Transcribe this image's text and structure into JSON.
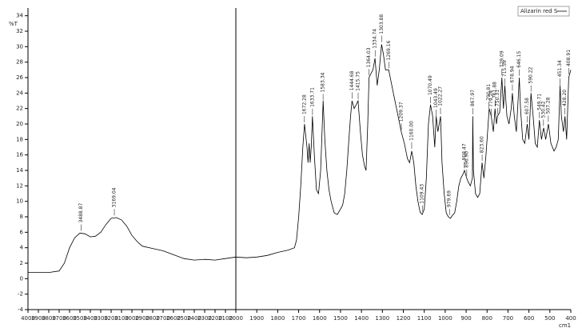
{
  "chart_data": {
    "type": "line",
    "y_label": "%T",
    "x_label": "cm1",
    "x": [
      4000,
      3800,
      3700,
      3650,
      3600,
      3550,
      3500,
      3450,
      3400,
      3350,
      3300,
      3250,
      3200,
      3150,
      3100,
      3050,
      3000,
      2950,
      2900,
      2800,
      2700,
      2600,
      2500,
      2400,
      2300,
      2200,
      2100,
      2000,
      1950,
      1900,
      1850,
      1800,
      1750,
      1720,
      1710,
      1700,
      1690,
      1680,
      1672,
      1660,
      1655,
      1650,
      1645,
      1640,
      1634,
      1625,
      1615,
      1605,
      1595,
      1583,
      1575,
      1565,
      1555,
      1545,
      1530,
      1515,
      1500,
      1490,
      1480,
      1470,
      1460,
      1452,
      1445,
      1435,
      1425,
      1416,
      1405,
      1395,
      1385,
      1378,
      1370,
      1364,
      1355,
      1345,
      1335,
      1325,
      1315,
      1304,
      1295,
      1285,
      1270,
      1255,
      1240,
      1225,
      1210,
      1195,
      1180,
      1170,
      1160,
      1150,
      1140,
      1130,
      1120,
      1110,
      1100,
      1090,
      1080,
      1070,
      1060,
      1050,
      1043,
      1035,
      1022,
      1015,
      1005,
      995,
      985,
      975,
      965,
      955,
      945,
      935,
      925,
      915,
      908,
      897,
      890,
      880,
      870,
      868,
      865,
      855,
      845,
      835,
      824,
      815,
      805,
      795,
      790,
      780,
      770,
      762,
      755,
      750,
      740,
      729,
      722,
      715,
      705,
      695,
      685,
      679,
      670,
      660,
      646,
      640,
      630,
      620,
      608,
      600,
      590,
      580,
      570,
      560,
      550,
      540,
      530,
      520,
      507,
      495,
      480,
      470,
      460,
      451,
      445,
      435,
      428,
      420,
      410,
      400
    ],
    "series": [
      {
        "name": "Alizarin red S",
        "color": "#000000",
        "values": [
          0.8,
          0.8,
          1.0,
          2,
          4,
          5.3,
          5.9,
          5.8,
          5.4,
          5.5,
          6.0,
          7.0,
          7.8,
          7.9,
          7.6,
          6.8,
          5.6,
          4.8,
          4.2,
          3.9,
          3.6,
          3.1,
          2.6,
          2.4,
          2.5,
          2.4,
          2.6,
          2.8,
          2.7,
          2.8,
          3.0,
          3.4,
          3.7,
          4.0,
          5,
          8,
          12,
          17,
          20,
          17,
          15,
          17.5,
          15,
          17,
          21,
          16,
          11.5,
          11,
          14,
          23,
          18,
          14,
          11.5,
          10,
          8.5,
          8.3,
          9,
          9.5,
          11,
          14,
          18,
          21,
          23,
          22,
          22.5,
          23,
          19,
          16,
          14.5,
          14,
          20,
          26,
          26.5,
          27,
          28.5,
          25,
          27,
          30.3,
          29,
          27,
          27,
          25,
          23,
          21,
          19,
          17.5,
          15.5,
          15,
          16.5,
          15,
          12,
          10,
          8.6,
          8.3,
          9,
          13,
          20,
          22.5,
          21,
          17,
          21,
          19,
          21,
          15,
          11,
          8.5,
          8,
          7.8,
          8.2,
          8.5,
          10,
          12,
          13,
          13.5,
          14,
          13,
          12.5,
          12,
          13,
          21,
          14,
          11,
          10.5,
          11,
          15,
          13,
          16,
          20,
          22,
          21,
          19,
          22,
          20,
          21,
          21.5,
          26,
          22,
          25,
          21,
          20,
          22,
          24,
          21,
          19,
          26,
          22,
          18,
          17.5,
          20,
          18,
          24,
          21,
          17.5,
          17,
          20.5,
          18,
          19.5,
          18,
          20,
          17.5,
          16.5,
          17,
          18,
          25,
          21,
          19,
          21,
          18,
          26,
          27
        ]
      }
    ],
    "peaks": [
      3488.87,
      3169.04,
      1672.28,
      1633.71,
      1583.34,
      1444.68,
      1415.75,
      1364.03,
      1334.74,
      1303.88,
      1269.16,
      1209.37,
      1160.0,
      1109.43,
      1070.49,
      1043.49,
      1022.27,
      979.69,
      908.47,
      896.9,
      867.97,
      823.6,
      790.81,
      779.24,
      761.88,
      750.31,
      729.09,
      715.59,
      678.94,
      646.15,
      607.58,
      590.22,
      549.71,
      530.42,
      507.28,
      451.34,
      428.2,
      408.91
    ],
    "peak_labels": [
      "3488.87",
      "3169.04",
      "1672.28",
      "1633.71",
      "1583.34",
      "1444.68",
      "1415.75",
      "1364.03",
      "1334.74",
      "1303.88",
      "1269.16",
      "1209.37",
      "1160.00",
      "1109.43",
      "1070.49",
      "1043.49",
      "1022.27",
      "979.69",
      "908.47",
      "896.90",
      "867.97",
      "823.60",
      "790.81",
      "779.24",
      "761.88",
      "750.31",
      "729.09",
      "715.59",
      "678.94",
      "646.15",
      "607.58",
      "590.22",
      "549.71",
      "530.42",
      "507.28",
      "451.34",
      "428.20",
      "408.91"
    ],
    "x_break": 2000,
    "xlim": [
      4000,
      400
    ],
    "xticks": [
      4000,
      3900,
      3800,
      3700,
      3600,
      3500,
      3400,
      3300,
      3200,
      3100,
      3000,
      2900,
      2800,
      2700,
      2600,
      2500,
      2400,
      2300,
      2200,
      2100,
      2000,
      1900,
      1800,
      1700,
      1600,
      1500,
      1400,
      1300,
      1200,
      1100,
      1000,
      900,
      800,
      700,
      600,
      500,
      400
    ],
    "ylim": [
      -4,
      35
    ],
    "yticks": [
      -4,
      -2,
      0,
      2,
      4,
      6,
      8,
      10,
      12,
      14,
      16,
      18,
      20,
      22,
      24,
      26,
      28,
      30,
      32,
      34
    ],
    "legend": "upper right"
  }
}
